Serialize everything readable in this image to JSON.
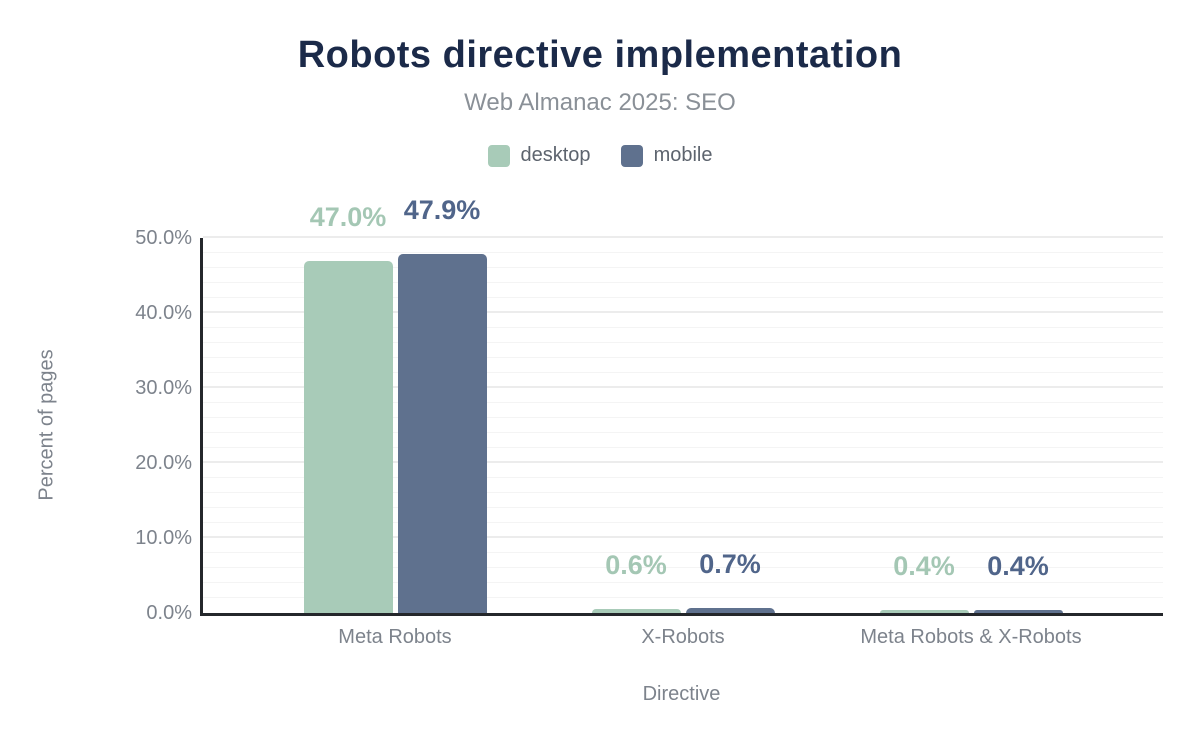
{
  "chart_data": {
    "type": "bar",
    "title": "Robots directive implementation",
    "subtitle": "Web Almanac 2025: SEO",
    "xlabel": "Directive",
    "ylabel": "Percent of pages",
    "ylim": [
      0,
      50
    ],
    "yticks": [
      {
        "value": 0,
        "label": "0.0%"
      },
      {
        "value": 10,
        "label": "10.0%"
      },
      {
        "value": 20,
        "label": "20.0%"
      },
      {
        "value": 30,
        "label": "30.0%"
      },
      {
        "value": 40,
        "label": "40.0%"
      },
      {
        "value": 50,
        "label": "50.0%"
      }
    ],
    "grid": {
      "minor_step": 2,
      "major_step": 10,
      "orientation": "horizontal"
    },
    "categories": [
      "Meta Robots",
      "X-Robots",
      "Meta Robots & X-Robots"
    ],
    "series": [
      {
        "name": "desktop",
        "color": "#a8cbb8",
        "label_color": "#a4c7b4",
        "values": [
          47.0,
          0.6,
          0.4
        ],
        "value_labels": [
          "47.0%",
          "0.6%",
          "0.4%"
        ]
      },
      {
        "name": "mobile",
        "color": "#5f718e",
        "label_color": "#50658a",
        "values": [
          47.9,
          0.7,
          0.4
        ],
        "value_labels": [
          "47.9%",
          "0.7%",
          "0.4%"
        ]
      }
    ],
    "legend_position": "top-center"
  },
  "style_colors": {
    "background": "#ffffff",
    "title": "#1b2a49",
    "subtitle": "#8a9097",
    "legend_text": "#5d646e",
    "tick_text": "#7d838c",
    "axis_line": "#24272b",
    "grid_minor": "#f4f4f4",
    "grid_major": "#ececec"
  }
}
